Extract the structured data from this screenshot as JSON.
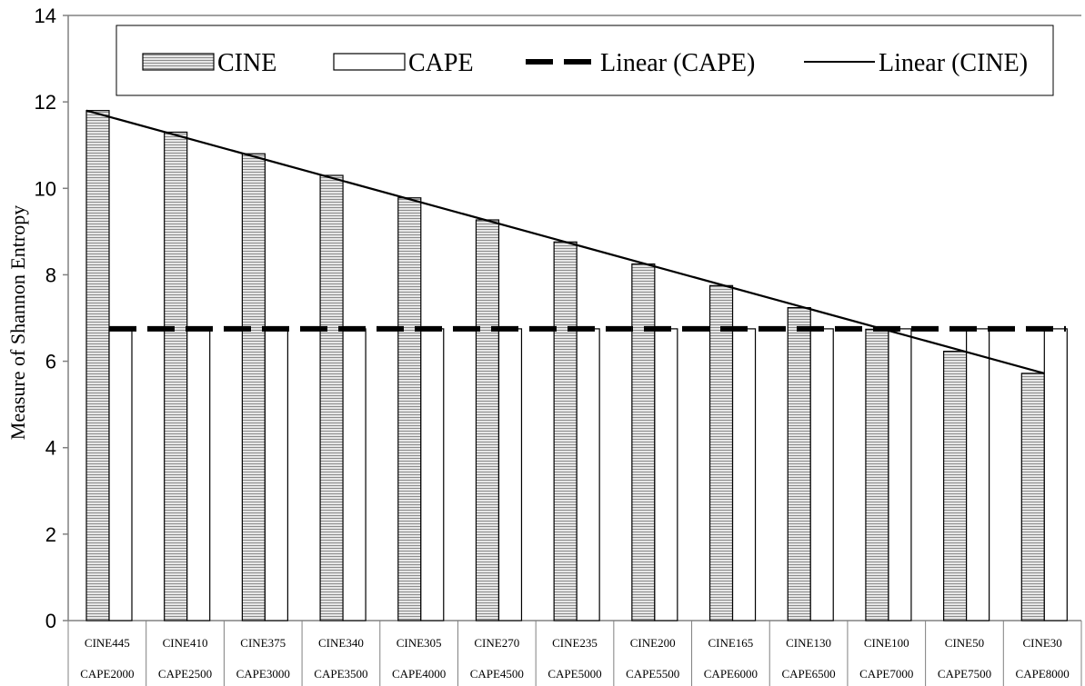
{
  "chart_data": {
    "type": "bar",
    "ylabel": "Measure of Shannon Entropy",
    "ylim": [
      0,
      14
    ],
    "yticks": [
      0,
      2,
      4,
      6,
      8,
      10,
      12,
      14
    ],
    "categories": [
      [
        "CINE445",
        "CAPE2000"
      ],
      [
        "CINE410",
        "CAPE2500"
      ],
      [
        "CINE375",
        "CAPE3000"
      ],
      [
        "CINE340",
        "CAPE3500"
      ],
      [
        "CINE305",
        "CAPE4000"
      ],
      [
        "CINE270",
        "CAPE4500"
      ],
      [
        "CINE235",
        "CAPE5000"
      ],
      [
        "CINE200",
        "CAPE5500"
      ],
      [
        "CINE165",
        "CAPE6000"
      ],
      [
        "CINE130",
        "CAPE6500"
      ],
      [
        "CINE100",
        "CAPE7000"
      ],
      [
        "CINE50",
        "CAPE7500"
      ],
      [
        "CINE30",
        "CAPE8000"
      ]
    ],
    "series": [
      {
        "name": "CINE",
        "values": [
          11.8,
          11.3,
          10.8,
          10.3,
          9.78,
          9.27,
          8.76,
          8.25,
          7.75,
          7.24,
          6.74,
          6.23,
          5.72
        ]
      },
      {
        "name": "CAPE",
        "values": [
          6.75,
          6.75,
          6.75,
          6.75,
          6.75,
          6.75,
          6.75,
          6.75,
          6.75,
          6.75,
          6.75,
          6.75,
          6.75
        ]
      }
    ],
    "trendlines": [
      {
        "name": "Linear (CAPE)",
        "series": "CAPE",
        "style": "dashed",
        "start": 6.75,
        "end": 6.75
      },
      {
        "name": "Linear (CINE)",
        "series": "CINE",
        "style": "solid",
        "start": 11.8,
        "end": 5.72
      }
    ],
    "legend": {
      "placement": "top",
      "items": [
        {
          "label": "CINE",
          "key": "bar-hatched"
        },
        {
          "label": "CAPE",
          "key": "bar-white"
        },
        {
          "label": "Linear (CAPE)",
          "key": "dashed-line"
        },
        {
          "label": "Linear (CINE)",
          "key": "solid-line"
        }
      ]
    },
    "colors": {
      "bar_outline": "#000000",
      "hatch": "#8c8c8c",
      "hatch_bg": "#e6e6e6",
      "cape_fill": "#ffffff",
      "axis": "#808080"
    }
  }
}
